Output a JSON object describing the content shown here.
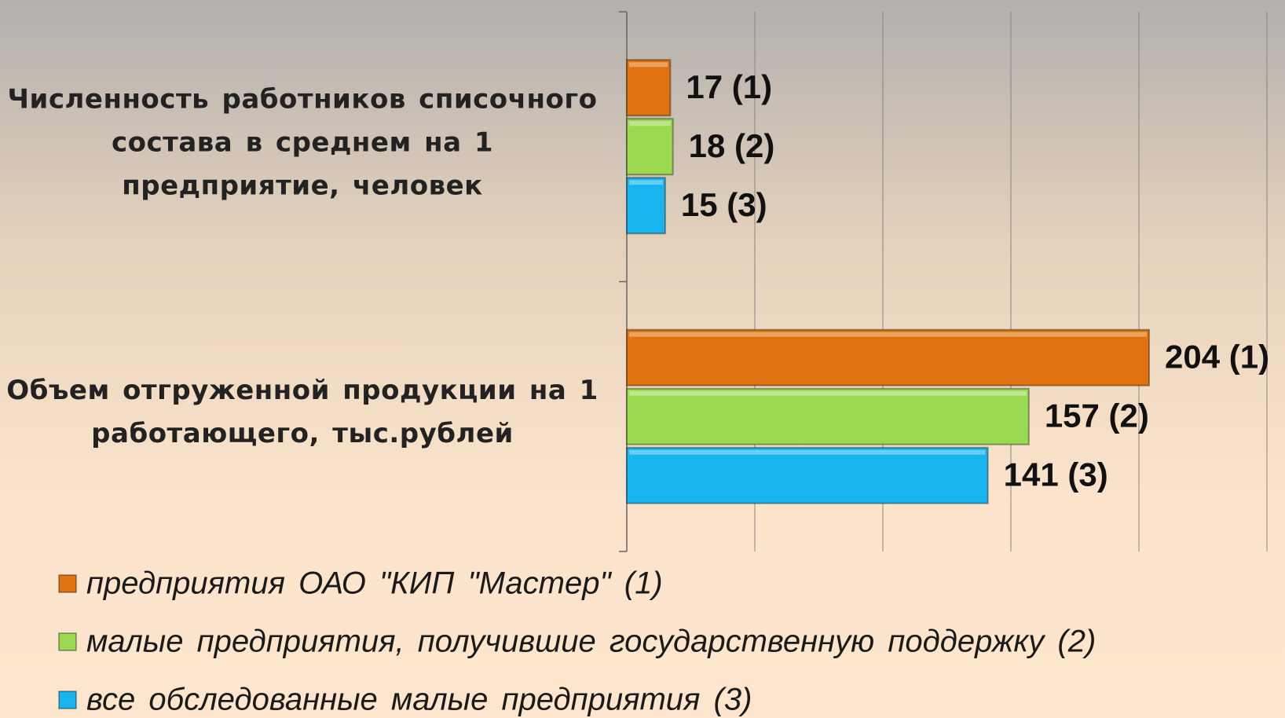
{
  "chart_data": {
    "type": "bar",
    "orientation": "horizontal",
    "categories": [
      "Численность работников списочного состава в среднем на 1 предприятие, человек",
      "Объем отгруженной продукции на 1 работающего, тыс.рублей"
    ],
    "series": [
      {
        "name": "предприятия ОАО \"КИП \"Мастер\" (1)",
        "color": "#e0720f",
        "values": [
          17,
          204
        ],
        "value_labels": [
          "17 (1)",
          "204 (1)"
        ]
      },
      {
        "name": "малые предприятия, получившие государственную поддержку (2)",
        "color": "#9bd950",
        "values": [
          18,
          157
        ],
        "value_labels": [
          "18 (2)",
          "157 (2)"
        ]
      },
      {
        "name": "все обследованные малые предприятия (3)",
        "color": "#17b4ef",
        "values": [
          15,
          141
        ],
        "value_labels": [
          "15 (3)",
          "141 (3)"
        ]
      }
    ],
    "xlim": [
      0,
      250
    ],
    "xticks": [
      0,
      50,
      100,
      150,
      200,
      250
    ],
    "grid": true,
    "legend": "bottom"
  }
}
